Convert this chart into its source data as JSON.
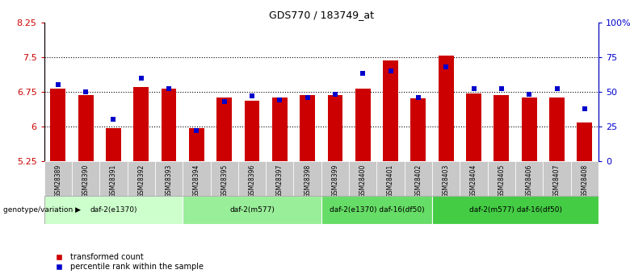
{
  "title": "GDS770 / 183749_at",
  "samples": [
    "GSM28389",
    "GSM28390",
    "GSM28391",
    "GSM28392",
    "GSM28393",
    "GSM28394",
    "GSM28395",
    "GSM28396",
    "GSM28397",
    "GSM28398",
    "GSM28399",
    "GSM28400",
    "GSM28401",
    "GSM28402",
    "GSM28403",
    "GSM28404",
    "GSM28405",
    "GSM28406",
    "GSM28407",
    "GSM28408"
  ],
  "bar_values": [
    6.82,
    6.68,
    5.97,
    6.85,
    6.82,
    5.97,
    6.62,
    6.55,
    6.62,
    6.68,
    6.68,
    6.82,
    7.42,
    6.6,
    7.53,
    6.72,
    6.68,
    6.62,
    6.62,
    6.08
  ],
  "blue_values": [
    55,
    50,
    30,
    60,
    52,
    22,
    43,
    47,
    44,
    46,
    48,
    63,
    65,
    46,
    68,
    52,
    52,
    48,
    52,
    38
  ],
  "ylim_left": [
    5.25,
    8.25
  ],
  "ylim_right": [
    0,
    100
  ],
  "yticks_left": [
    5.25,
    6.0,
    6.75,
    7.5,
    8.25
  ],
  "ytick_labels_left": [
    "5.25",
    "6",
    "6.75",
    "7.5",
    "8.25"
  ],
  "yticks_right": [
    0,
    25,
    50,
    75,
    100
  ],
  "ytick_labels_right": [
    "0",
    "25",
    "50",
    "75",
    "100%"
  ],
  "bar_color": "#cc0000",
  "blue_color": "#0000cc",
  "groups": [
    {
      "label": "daf-2(e1370)",
      "start": 0,
      "end": 5,
      "color": "#ccffcc"
    },
    {
      "label": "daf-2(m577)",
      "start": 5,
      "end": 10,
      "color": "#99ee99"
    },
    {
      "label": "daf-2(e1370) daf-16(df50)",
      "start": 10,
      "end": 14,
      "color": "#66dd66"
    },
    {
      "label": "daf-2(m577) daf-16(df50)",
      "start": 14,
      "end": 20,
      "color": "#44cc44"
    }
  ],
  "sample_bg_color": "#c8c8c8",
  "legend_red_label": "transformed count",
  "legend_blue_label": "percentile rank within the sample",
  "genotype_label": "genotype/variation"
}
